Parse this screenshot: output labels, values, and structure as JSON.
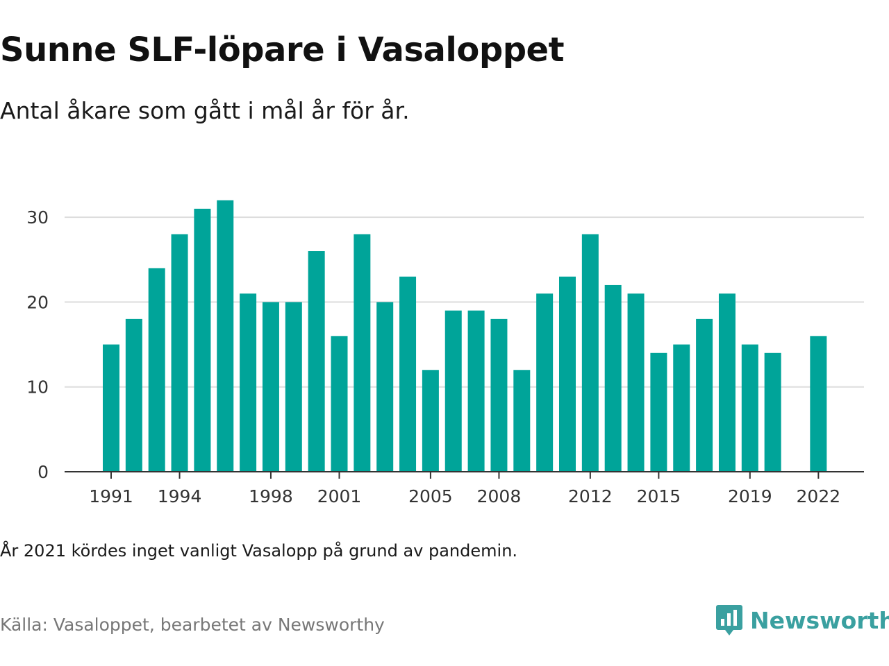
{
  "title": "Sunne SLF-löpare i Vasaloppet",
  "subtitle": "Antal åkare som gått i mål år för år.",
  "note": "År 2021 kördes inget vanligt Vasalopp på grund av pandemin.",
  "source": "Källa: Vasaloppet, bearbetet av Newsworthy",
  "brand": {
    "name": "Newsworthy",
    "color": "#3aa0a0",
    "icon": "newsworthy-chart-bubble-icon"
  },
  "chart_data": {
    "type": "bar",
    "categories": [
      "1991",
      "1992",
      "1993",
      "1994",
      "1995",
      "1996",
      "1997",
      "1998",
      "1999",
      "2000",
      "2001",
      "2002",
      "2003",
      "2004",
      "2005",
      "2006",
      "2007",
      "2008",
      "2009",
      "2010",
      "2011",
      "2012",
      "2013",
      "2014",
      "2015",
      "2016",
      "2017",
      "2018",
      "2019",
      "2020",
      "2021",
      "2022"
    ],
    "values": [
      15,
      18,
      24,
      28,
      31,
      32,
      21,
      20,
      20,
      26,
      16,
      28,
      20,
      23,
      12,
      19,
      19,
      18,
      12,
      21,
      23,
      28,
      22,
      21,
      14,
      15,
      18,
      21,
      15,
      14,
      null,
      16
    ],
    "x_tick_labels": [
      "1991",
      "1994",
      "1998",
      "2001",
      "2005",
      "2008",
      "2012",
      "2015",
      "2019",
      "2022"
    ],
    "y_ticks": [
      0,
      10,
      20,
      30
    ],
    "ylim": [
      0,
      33
    ],
    "grid": true,
    "bar_color": "#00a499",
    "xlabel": "",
    "ylabel": ""
  }
}
